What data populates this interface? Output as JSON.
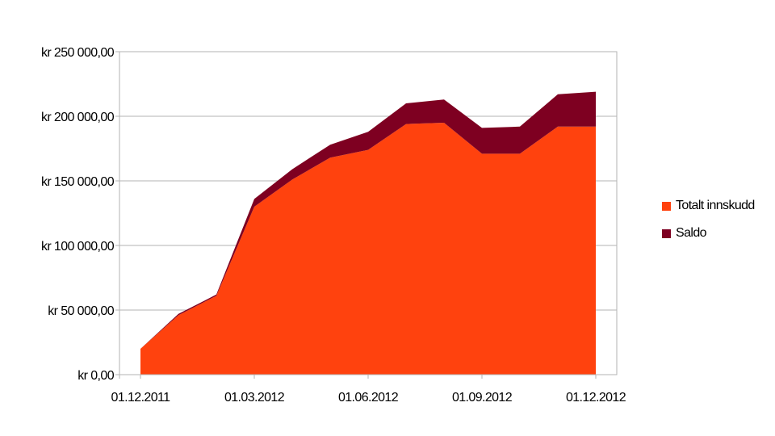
{
  "chart_data": {
    "type": "area",
    "stacked": true,
    "x": [
      "01.12.2011",
      "01.01.2012",
      "01.02.2012",
      "01.03.2012",
      "01.04.2012",
      "01.05.2012",
      "01.06.2012",
      "01.07.2012",
      "01.08.2012",
      "01.09.2012",
      "01.10.2012",
      "01.11.2012",
      "01.12.2012"
    ],
    "xticks": [
      "01.12.2011",
      "01.03.2012",
      "01.06.2012",
      "01.09.2012",
      "01.12.2012"
    ],
    "yticks": [
      "kr 0,00",
      "kr 50 000,00",
      "kr 100 000,00",
      "kr 150 000,00",
      "kr 200 000,00",
      "kr 250 000,00"
    ],
    "ylim": [
      0,
      250000
    ],
    "grid": true,
    "legend_position": "right",
    "series": [
      {
        "name": "Totalt innskudd",
        "color": "#ff420e",
        "values": [
          20000,
          46000,
          61000,
          130000,
          151000,
          168000,
          174000,
          194000,
          195000,
          171000,
          171000,
          192000,
          192000
        ]
      },
      {
        "name": "Saldo",
        "color": "#7e0021",
        "values": [
          0,
          1000,
          1000,
          6000,
          8000,
          10000,
          14000,
          16000,
          18000,
          20000,
          21000,
          25000,
          27000
        ]
      }
    ],
    "title": "",
    "xlabel": "",
    "ylabel": ""
  }
}
